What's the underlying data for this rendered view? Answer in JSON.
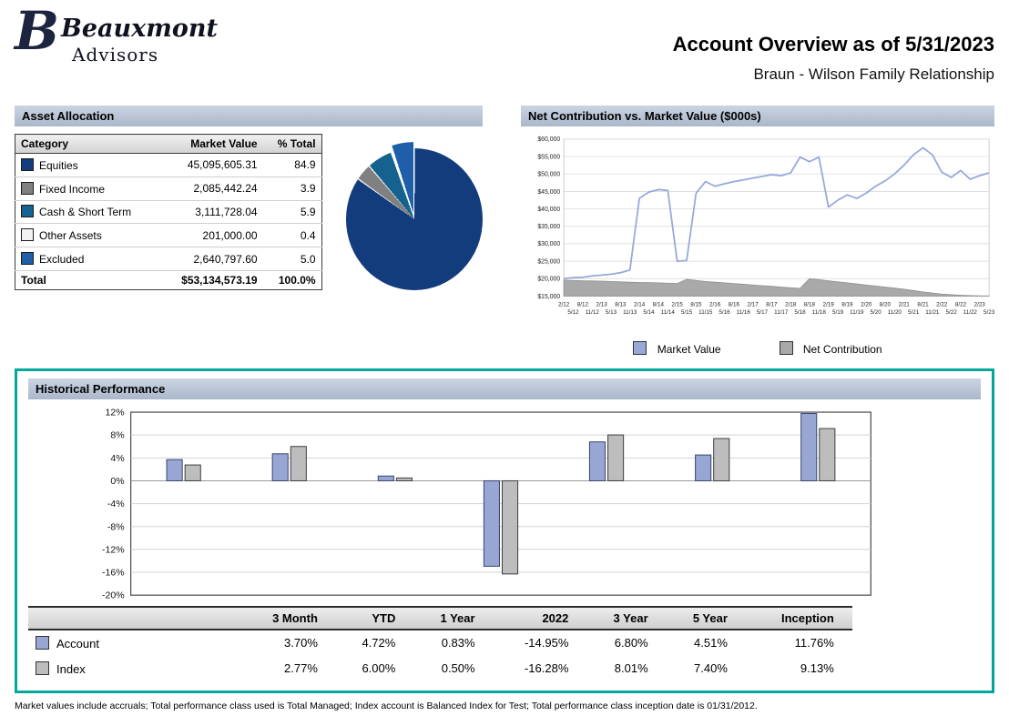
{
  "brand": {
    "monogram": "B",
    "name": "Beauxmont",
    "suffix": "Advisors"
  },
  "header": {
    "title": "Account Overview as of 5/31/2023",
    "subtitle": "Braun - Wilson Family Relationship"
  },
  "asset_allocation": {
    "section_title": "Asset Allocation",
    "columns": [
      "Category",
      "Market Value",
      "% Total"
    ],
    "rows": [
      {
        "category": "Equities",
        "market_value": "45,095,605.31",
        "pct_total": "84.9",
        "pct": 84.9,
        "color": "#123c7c"
      },
      {
        "category": "Fixed Income",
        "market_value": "2,085,442.24",
        "pct_total": "3.9",
        "pct": 3.9,
        "color": "#808080"
      },
      {
        "category": "Cash & Short Term",
        "market_value": "3,111,728.04",
        "pct_total": "5.9",
        "pct": 5.9,
        "color": "#15628f"
      },
      {
        "category": "Other Assets",
        "market_value": "201,000.00",
        "pct_total": "0.4",
        "pct": 0.4,
        "color": "#f2f2f2"
      },
      {
        "category": "Excluded",
        "market_value": "2,640,797.60",
        "pct_total": "5.0",
        "pct": 5.0,
        "color": "#1f5ea8",
        "exploded": true
      }
    ],
    "total": {
      "label": "Total",
      "market_value": "$53,134,573.19",
      "pct_total": "100.0%"
    }
  },
  "net_contribution": {
    "section_title": "Net Contribution vs. Market Value ($000s)",
    "chart_data": {
      "type": "line",
      "ymin": 15000,
      "ymax": 60000,
      "ystep": 5000,
      "x_labels": [
        "2/12",
        "5/12",
        "8/12",
        "11/12",
        "2/13",
        "5/13",
        "8/13",
        "11/13",
        "2/14",
        "5/14",
        "8/14",
        "11/14",
        "2/15",
        "5/15",
        "8/15",
        "11/15",
        "2/16",
        "5/16",
        "8/16",
        "11/16",
        "2/17",
        "5/17",
        "8/17",
        "11/17",
        "2/18",
        "5/18",
        "8/18",
        "11/18",
        "2/19",
        "5/19",
        "8/19",
        "11/19",
        "2/20",
        "5/20",
        "8/20",
        "11/20",
        "2/21",
        "5/21",
        "8/21",
        "11/21",
        "2/22",
        "5/22",
        "8/22",
        "11/22",
        "2/23",
        "5/23"
      ],
      "series": [
        {
          "name": "Market Value",
          "color": "#97a8d9",
          "values": [
            20000,
            20300,
            20400,
            20800,
            21000,
            21300,
            21700,
            22500,
            43000,
            44800,
            45500,
            45300,
            25000,
            25200,
            44500,
            47800,
            46500,
            47200,
            47800,
            48300,
            48800,
            49300,
            49800,
            49500,
            50300,
            54800,
            53500,
            54800,
            40500,
            42500,
            44000,
            43000,
            44500,
            46500,
            48000,
            50000,
            52500,
            55500,
            57500,
            55500,
            50500,
            49000,
            51000,
            48500,
            49500,
            50300
          ]
        },
        {
          "name": "Net Contribution",
          "color": "#a9a9a9",
          "values": [
            19600,
            19500,
            19400,
            19350,
            19300,
            19200,
            19100,
            19000,
            18900,
            18850,
            18800,
            18700,
            18600,
            19800,
            19500,
            19200,
            19000,
            18800,
            18600,
            18400,
            18200,
            18000,
            17800,
            17600,
            17400,
            17200,
            20000,
            19700,
            19400,
            19100,
            18800,
            18500,
            18200,
            17900,
            17600,
            17300,
            17000,
            16600,
            16200,
            15900,
            15600,
            15400,
            15250,
            15150,
            15100,
            15050
          ]
        }
      ]
    }
  },
  "historical_performance": {
    "section_title": "Historical Performance",
    "accent_border_color": "#00a79b",
    "chart_data": {
      "type": "bar",
      "ymin": -20,
      "ymax": 12,
      "ystep": 4,
      "categories": [
        "3 Month",
        "YTD",
        "1 Year",
        "2022",
        "3 Year",
        "5 Year",
        "Inception"
      ],
      "series": [
        {
          "name": "Account",
          "color": "#98a6d4",
          "border": "#39466b",
          "values": [
            3.7,
            4.72,
            0.83,
            -14.95,
            6.8,
            4.51,
            11.76
          ],
          "display": [
            "3.70%",
            "4.72%",
            "0.83%",
            "-14.95%",
            "6.80%",
            "4.51%",
            "11.76%"
          ]
        },
        {
          "name": "Index",
          "color": "#bdbdbd",
          "border": "#404040",
          "values": [
            2.77,
            6.0,
            0.5,
            -16.28,
            8.01,
            7.4,
            9.13
          ],
          "display": [
            "2.77%",
            "6.00%",
            "0.50%",
            "-16.28%",
            "8.01%",
            "7.40%",
            "9.13%"
          ]
        }
      ]
    }
  },
  "footnote": "Market values include accruals; Total performance class used is Total Managed; Index account is Balanced Index for Test; Total performance class inception date is 01/31/2012."
}
